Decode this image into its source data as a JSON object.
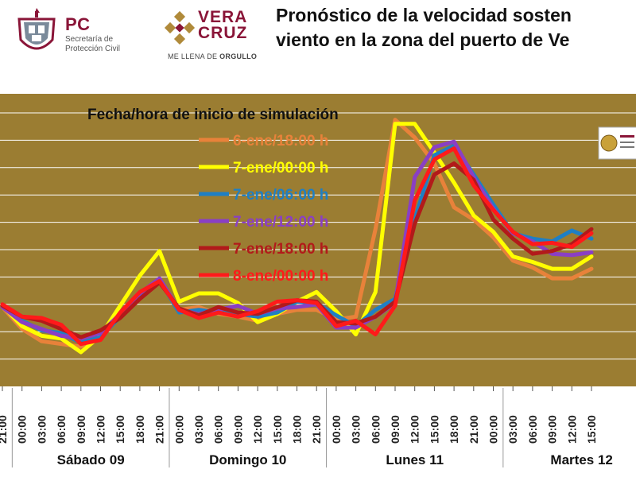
{
  "header": {
    "pc_title": "PC",
    "pc_line1": "Secretaría de",
    "pc_line2": "Protección Civil",
    "vc_line1": "VERA",
    "vc_line2": "CRUZ",
    "vc_tagline_a": "ME LLENA DE ",
    "vc_tagline_b": "ORGULLO",
    "title_line1": "Pronóstico de la velocidad sosten",
    "title_line2": "viento en la zona del puerto de Ve"
  },
  "chart_data": {
    "type": "line",
    "title": "",
    "xlabel": "",
    "ylabel": "",
    "legend_title": "Fecha/hora de inicio de simulación",
    "legend_position": "top-left",
    "grid": true,
    "background_color": "#9b7d32",
    "x": [
      "21:00",
      "00:00",
      "03:00",
      "06:00",
      "09:00",
      "12:00",
      "15:00",
      "18:00",
      "21:00",
      "00:00",
      "03:00",
      "06:00",
      "09:00",
      "12:00",
      "15:00",
      "18:00",
      "21:00",
      "00:00",
      "03:00",
      "06:00",
      "09:00",
      "12:00",
      "15:00",
      "18:00",
      "21:00",
      "00:00",
      "03:00",
      "06:00",
      "09:00",
      "12:00",
      "15:00"
    ],
    "day_labels": [
      "Sábado 09",
      "Domingo 10",
      "Lunes 11",
      "Martes 12"
    ],
    "series": [
      {
        "name": "6-ene/18:00 h",
        "color": "#e8823a",
        "values": [
          5.8,
          4.2,
          3.3,
          3.1,
          2.9,
          3.6,
          5.2,
          6.4,
          7.7,
          5.6,
          5.8,
          5.3,
          5.1,
          4.8,
          5.3,
          5.6,
          5.6,
          4.9,
          5.1,
          11.5,
          19.5,
          18.2,
          16.3,
          13.1,
          12.2,
          10.9,
          9.2,
          8.7,
          7.9,
          7.9,
          8.6
        ]
      },
      {
        "name": "7-ene/00:00 h",
        "color": "#ffff00",
        "values": [
          5.9,
          4.4,
          3.7,
          3.5,
          2.5,
          3.7,
          5.9,
          8.1,
          9.9,
          6.2,
          6.8,
          6.8,
          6.1,
          4.7,
          5.3,
          6.2,
          6.9,
          5.5,
          3.8,
          6.9,
          19.2,
          19.2,
          17.1,
          14.9,
          12.5,
          11.3,
          9.5,
          9.1,
          8.6,
          8.6,
          9.5
        ]
      },
      {
        "name": "7-ene/06:00 h",
        "color": "#1f7fc4",
        "values": [
          5.9,
          4.8,
          4.1,
          3.9,
          3.2,
          3.6,
          5.1,
          6.6,
          7.8,
          5.4,
          5.6,
          5.4,
          5.3,
          5.1,
          5.4,
          6.2,
          6.1,
          5.2,
          4.4,
          5.6,
          6.4,
          12.2,
          16.9,
          17.6,
          15.5,
          13.3,
          11.2,
          10.8,
          10.6,
          11.4,
          10.8
        ]
      },
      {
        "name": "7-ene/12:00 h",
        "color": "#8a3fc4",
        "values": [
          5.8,
          4.7,
          4.2,
          3.7,
          3.5,
          3.9,
          5.3,
          6.8,
          7.9,
          5.6,
          5.3,
          5.6,
          5.9,
          5.3,
          5.7,
          5.8,
          6.0,
          4.3,
          4.3,
          5.1,
          6.1,
          15.3,
          17.5,
          17.9,
          15.3,
          13.0,
          11.2,
          10.6,
          9.7,
          9.6,
          9.8
        ]
      },
      {
        "name": "7-ene/18:00 h",
        "color": "#b21a1a",
        "values": [
          5.9,
          5.1,
          4.8,
          4.2,
          3.6,
          4.1,
          5.0,
          6.4,
          7.6,
          5.7,
          5.2,
          5.8,
          5.4,
          5.3,
          5.8,
          6.3,
          6.2,
          4.7,
          4.6,
          5.1,
          6.2,
          11.9,
          15.5,
          16.3,
          15.1,
          12.2,
          10.8,
          9.7,
          9.9,
          10.4,
          11.5
        ]
      },
      {
        "name": "8-ene/00:00 h",
        "color": "#ff1a1a",
        "values": [
          6.0,
          5.1,
          5.0,
          4.5,
          3.1,
          3.4,
          5.4,
          6.9,
          7.7,
          5.6,
          5.0,
          5.4,
          5.1,
          5.5,
          6.2,
          6.3,
          6.1,
          4.4,
          4.8,
          3.8,
          5.9,
          13.6,
          16.6,
          17.4,
          14.7,
          12.9,
          11.3,
          10.4,
          10.5,
          10.2,
          11.2
        ]
      }
    ]
  }
}
